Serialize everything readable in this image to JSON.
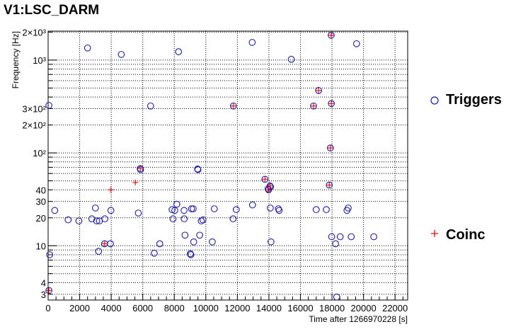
{
  "chart_data": {
    "type": "scatter",
    "title": "V1:LSC_DARM",
    "xlabel": "Time after 1266970228 [s]",
    "ylabel": "Frequency [Hz]",
    "xlim": [
      0,
      22800
    ],
    "ylim": [
      2.6,
      2050
    ],
    "yscale": "log",
    "grid": true,
    "legend_position": "right",
    "x_ticks": [
      {
        "value": 0,
        "label": "0"
      },
      {
        "value": 2000,
        "label": "2000"
      },
      {
        "value": 4000,
        "label": "4000"
      },
      {
        "value": 6000,
        "label": "6000"
      },
      {
        "value": 8000,
        "label": "8000"
      },
      {
        "value": 10000,
        "label": "10000"
      },
      {
        "value": 12000,
        "label": "12000"
      },
      {
        "value": 14000,
        "label": "14000"
      },
      {
        "value": 16000,
        "label": "16000"
      },
      {
        "value": 18000,
        "label": "18000"
      },
      {
        "value": 20000,
        "label": "20000"
      },
      {
        "value": 22000,
        "label": "22000"
      }
    ],
    "y_ticks": [
      {
        "value": 3,
        "label": "3"
      },
      {
        "value": 4,
        "label": "4"
      },
      {
        "value": 10,
        "label": "10"
      },
      {
        "value": 20,
        "label": "20"
      },
      {
        "value": 30,
        "label": "30"
      },
      {
        "value": 40,
        "label": "40"
      },
      {
        "value": 100,
        "label": "10²"
      },
      {
        "value": 200,
        "label": "2×10²"
      },
      {
        "value": 300,
        "label": "3×10²"
      },
      {
        "value": 1000,
        "label": "10³"
      },
      {
        "value": 2000,
        "label": "2×10³"
      }
    ],
    "series": [
      {
        "name": "Triggers",
        "marker": "open-circle",
        "color": "#1a1aa6",
        "points": [
          [
            50,
            3.3
          ],
          [
            100,
            8
          ],
          [
            50,
            325
          ],
          [
            420,
            24
          ],
          [
            1270,
            19
          ],
          [
            1950,
            18.5
          ],
          [
            2500,
            1350
          ],
          [
            2770,
            19.5
          ],
          [
            3000,
            25.5
          ],
          [
            3080,
            18.5
          ],
          [
            3200,
            8.7
          ],
          [
            3250,
            18.5
          ],
          [
            3580,
            10.5
          ],
          [
            3600,
            19.5
          ],
          [
            3950,
            10.5
          ],
          [
            3980,
            24
          ],
          [
            4640,
            1150
          ],
          [
            5720,
            22.5
          ],
          [
            5840,
            68
          ],
          [
            5860,
            66
          ],
          [
            6500,
            320
          ],
          [
            6730,
            8.3
          ],
          [
            7080,
            10.5
          ],
          [
            7860,
            24.5
          ],
          [
            7920,
            19.5
          ],
          [
            8030,
            24
          ],
          [
            8160,
            28
          ],
          [
            8270,
            1230
          ],
          [
            8620,
            24
          ],
          [
            8630,
            19.5
          ],
          [
            8680,
            13
          ],
          [
            9020,
            8.2
          ],
          [
            9050,
            8
          ],
          [
            9090,
            25
          ],
          [
            9200,
            25
          ],
          [
            9230,
            11
          ],
          [
            9480,
            67
          ],
          [
            9500,
            66
          ],
          [
            9610,
            13
          ],
          [
            9710,
            18.5
          ],
          [
            9820,
            19
          ],
          [
            10410,
            11
          ],
          [
            10540,
            25
          ],
          [
            11730,
            19.5
          ],
          [
            11750,
            320
          ],
          [
            11930,
            24.5
          ],
          [
            12940,
            1550
          ],
          [
            12960,
            27.5
          ],
          [
            13750,
            52
          ],
          [
            13950,
            41
          ],
          [
            13980,
            40
          ],
          [
            14070,
            44
          ],
          [
            14100,
            43
          ],
          [
            14090,
            25.5
          ],
          [
            14130,
            11
          ],
          [
            14600,
            25
          ],
          [
            14650,
            24
          ],
          [
            15420,
            1020
          ],
          [
            16830,
            320
          ],
          [
            17000,
            24.5
          ],
          [
            17150,
            470
          ],
          [
            17640,
            24.5
          ],
          [
            17830,
            45
          ],
          [
            17900,
            113
          ],
          [
            17960,
            340
          ],
          [
            17950,
            1850
          ],
          [
            17980,
            12.5
          ],
          [
            18230,
            10.5
          ],
          [
            18300,
            2.8
          ],
          [
            18520,
            12.5
          ],
          [
            18950,
            24
          ],
          [
            19030,
            25.5
          ],
          [
            19220,
            12.5
          ],
          [
            19560,
            1500
          ],
          [
            20650,
            12.5
          ]
        ]
      },
      {
        "name": "Coinc",
        "marker": "plus",
        "color": "#e60000",
        "points": [
          [
            50,
            3.3
          ],
          [
            3580,
            10.5
          ],
          [
            3980,
            40
          ],
          [
            5530,
            48
          ],
          [
            5840,
            68
          ],
          [
            11750,
            320
          ],
          [
            13750,
            52
          ],
          [
            13950,
            40
          ],
          [
            14070,
            44
          ],
          [
            16830,
            320
          ],
          [
            17150,
            470
          ],
          [
            17830,
            45
          ],
          [
            17900,
            113
          ],
          [
            17960,
            340
          ],
          [
            17950,
            1850
          ]
        ]
      }
    ]
  }
}
